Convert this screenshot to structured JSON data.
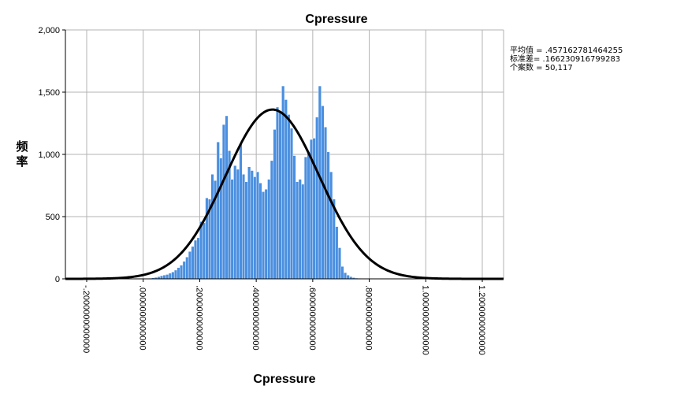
{
  "chart_data": {
    "type": "bar",
    "title": "Cpressure",
    "xlabel": "Cpressure",
    "ylabel": "频率",
    "xlim": [
      -0.2,
      1.2
    ],
    "ylim": [
      0,
      2000
    ],
    "grid": true,
    "legend": "none",
    "y_ticks": [
      {
        "value": 0,
        "label": "0"
      },
      {
        "value": 500,
        "label": "500"
      },
      {
        "value": 1000,
        "label": "1,000"
      },
      {
        "value": 1500,
        "label": "1,500"
      },
      {
        "value": 2000,
        "label": "2,000"
      }
    ],
    "x_ticks": [
      {
        "value": -0.2,
        "label": "-.2000000000000"
      },
      {
        "value": 0.0,
        "label": ".0000000000000"
      },
      {
        "value": 0.2,
        "label": ".2000000000000"
      },
      {
        "value": 0.4,
        "label": ".4000000000000"
      },
      {
        "value": 0.6,
        "label": ".6000000000000"
      },
      {
        "value": 0.8,
        "label": ".8000000000000"
      },
      {
        "value": 1.0,
        "label": "1.0000000000000"
      },
      {
        "value": 1.2,
        "label": "1.2000000000000"
      }
    ],
    "stats": [
      "平均值 = .457162781464255",
      "标准差= .166230916799283",
      "个案数 = 50,117"
    ],
    "normal_curve": {
      "mean": 0.457162781464255,
      "std": 0.166230916799283,
      "n": 50117,
      "peak": 1360
    },
    "bin_width": 0.01,
    "bin_start": 0.0,
    "values": [
      2,
      3,
      5,
      8,
      12,
      18,
      25,
      30,
      35,
      45,
      55,
      70,
      90,
      110,
      140,
      175,
      220,
      260,
      310,
      330,
      460,
      450,
      650,
      640,
      840,
      790,
      1100,
      970,
      1240,
      1310,
      1030,
      800,
      910,
      880,
      1080,
      840,
      780,
      900,
      870,
      820,
      860,
      770,
      700,
      720,
      800,
      950,
      1200,
      1380,
      1340,
      1550,
      1440,
      1320,
      1210,
      990,
      780,
      800,
      760,
      980,
      1020,
      1120,
      1130,
      1300,
      1550,
      1390,
      1220,
      1020,
      860,
      640,
      420,
      250,
      100,
      50,
      30,
      18,
      10,
      6,
      4,
      2
    ]
  }
}
